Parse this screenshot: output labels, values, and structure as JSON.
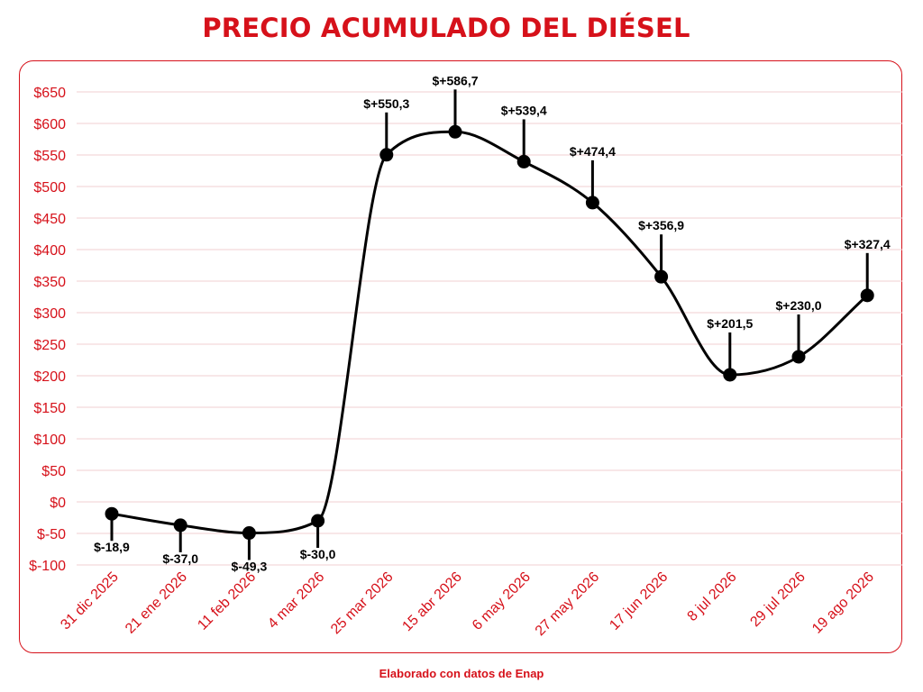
{
  "chart_title": "PRECIO ACUMULADO DEL DIÉSEL",
  "footer": "Elaborado con datos de Enap",
  "colors": {
    "accent": "#d6111a",
    "line": "#000000",
    "grid": "#f2cfd1",
    "text": "#000000"
  },
  "chart_data": {
    "type": "line",
    "title": "PRECIO ACUMULADO DEL DIÉSEL",
    "xlabel": "",
    "ylabel": "",
    "categories": [
      "31 dic 2025",
      "21 ene 2026",
      "11 feb 2026",
      "4 mar 2026",
      "25 mar 2026",
      "15 abr 2026",
      "6 may 2026",
      "27 may 2026",
      "17 jun 2026",
      "8 jul 2026",
      "29 jul 2026",
      "19 ago 2026"
    ],
    "values": [
      -18.9,
      -37.0,
      -49.3,
      -30.0,
      550.3,
      586.7,
      539.4,
      474.4,
      356.9,
      201.5,
      230.0,
      327.4
    ],
    "data_labels": [
      "$-18,9",
      "$-37,0",
      "$-49,3",
      "$-30,0",
      "$+550,3",
      "$+586,7",
      "$+539,4",
      "$+474,4",
      "$+356,9",
      "$+201,5",
      "$+230,0",
      "$+327,4"
    ],
    "ylim": [
      -100,
      650
    ],
    "yticks": [
      -100,
      -50,
      0,
      50,
      100,
      150,
      200,
      250,
      300,
      350,
      400,
      450,
      500,
      550,
      600,
      650
    ],
    "ytick_labels": [
      "$-100",
      "$-50",
      "$0",
      "$50",
      "$100",
      "$150",
      "$200",
      "$250",
      "$300",
      "$350",
      "$400",
      "$450",
      "$500",
      "$550",
      "$600",
      "$650"
    ],
    "grid": true,
    "legend": "none"
  }
}
